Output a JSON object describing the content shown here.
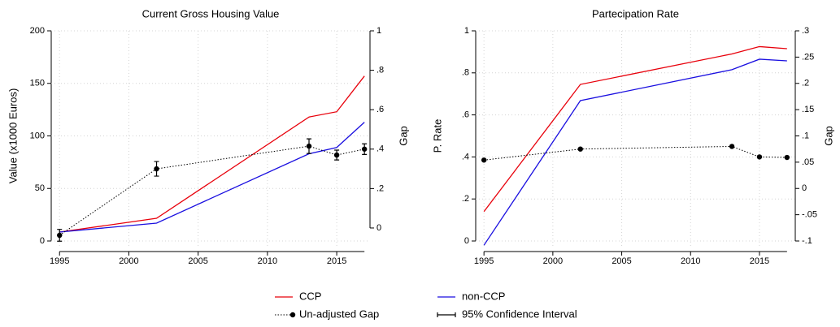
{
  "chart_data": [
    {
      "type": "line",
      "title": "Current Gross Housing Value",
      "x": [
        1995,
        2002,
        2013,
        2015,
        2017
      ],
      "xlim": [
        1994.4,
        2017.4
      ],
      "xticks": [
        1995,
        2000,
        2005,
        2010,
        2015
      ],
      "ylabel": "Value (x1000 Euros)",
      "ylim": [
        0,
        200
      ],
      "yticks": [
        0,
        50,
        100,
        150,
        200
      ],
      "y2label": "Gap",
      "y2lim": [
        -0.066,
        1
      ],
      "y2ticks": [
        0,
        {
          "value": 0.2,
          "label": ".2"
        },
        {
          "value": 0.4,
          "label": ".4"
        },
        {
          "value": 0.6,
          "label": ".6"
        },
        {
          "value": 0.8,
          "label": ".8"
        },
        1
      ],
      "grid": true,
      "series": [
        {
          "name": "CCP",
          "color": "#e8000b",
          "linestyle": "solid",
          "values": [
            8.5,
            21.6,
            118,
            123,
            157
          ]
        },
        {
          "name": "non-CCP",
          "color": "#1a0fe0",
          "linestyle": "solid",
          "values": [
            8.5,
            17,
            83,
            89,
            113
          ]
        },
        {
          "name": "Un-adjusted Gap",
          "color": "#000000",
          "linestyle": "dotted",
          "marker": "circle",
          "axis": "y2",
          "values": [
            -0.037,
            0.3,
            0.415,
            0.37,
            0.4
          ],
          "errors": [
            0.03,
            0.037,
            0.037,
            0.025,
            0.027
          ],
          "error_name": "95% Confidence Interval"
        }
      ]
    },
    {
      "type": "line",
      "title": "Partecipation Rate",
      "x": [
        1995,
        2002,
        2013,
        2015,
        2017
      ],
      "xlim": [
        1994.4,
        2017.6
      ],
      "xticks": [
        1995,
        2000,
        2005,
        2010,
        2015
      ],
      "ylabel": "P. Rate",
      "ylim": [
        0,
        1
      ],
      "yticks": [
        0,
        {
          "value": 0.2,
          "label": ".2"
        },
        {
          "value": 0.4,
          "label": ".4"
        },
        {
          "value": 0.6,
          "label": ".6"
        },
        {
          "value": 0.8,
          "label": ".8"
        },
        1
      ],
      "y2label": "Gap",
      "y2lim": [
        -0.1,
        0.3
      ],
      "y2ticks": [
        {
          "value": -0.1,
          "label": "-.1"
        },
        {
          "value": -0.05,
          "label": "-.05"
        },
        0,
        {
          "value": 0.05,
          "label": ".05"
        },
        {
          "value": 0.1,
          "label": ".1"
        },
        {
          "value": 0.15,
          "label": ".15"
        },
        {
          "value": 0.2,
          "label": ".2"
        },
        {
          "value": 0.25,
          "label": ".25"
        },
        {
          "value": 0.3,
          "label": ".3"
        }
      ],
      "grid": true,
      "series": [
        {
          "color": "#e8000b",
          "linestyle": "solid",
          "values": [
            0.14,
            0.745,
            0.89,
            0.925,
            0.915
          ]
        },
        {
          "color": "#1a0fe0",
          "linestyle": "solid",
          "values": [
            -0.02,
            0.668,
            0.815,
            0.865,
            0.857
          ]
        },
        {
          "color": "#000000",
          "linestyle": "dotted",
          "marker": "circle",
          "axis": "y2",
          "values": [
            0.054,
            0.075,
            0.08,
            0.06,
            0.059
          ]
        }
      ]
    }
  ]
}
